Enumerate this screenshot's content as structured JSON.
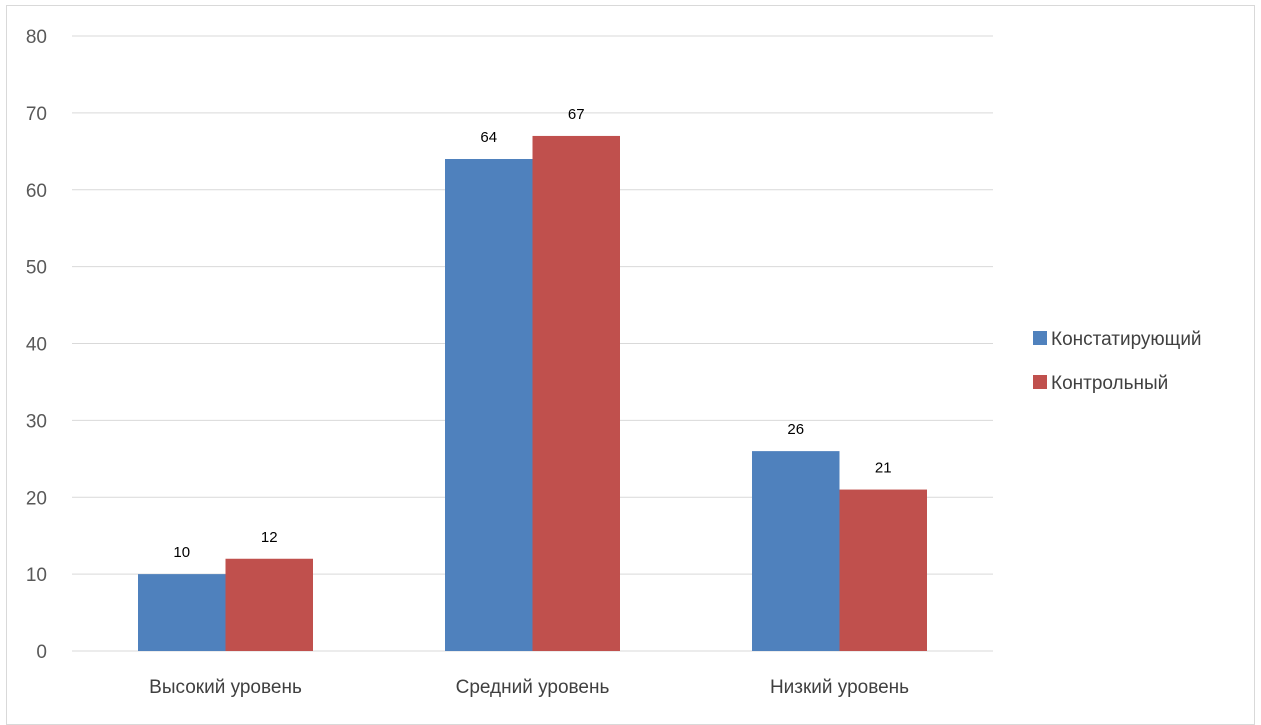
{
  "chart_data": {
    "type": "bar",
    "title": "",
    "xlabel": "",
    "ylabel": "",
    "categories": [
      "Высокий уровень",
      "Средний уровень",
      "Низкий уровень"
    ],
    "series": [
      {
        "name": "Констатирующий",
        "values": [
          10,
          64,
          26
        ],
        "color": "#4F81BD"
      },
      {
        "name": "Контрольный",
        "values": [
          12,
          67,
          21
        ],
        "color": "#C0504D"
      }
    ],
    "ylim": [
      0,
      80
    ],
    "yticks": [
      0,
      10,
      20,
      30,
      40,
      50,
      60,
      70,
      80
    ],
    "grid": true,
    "legend_position": "right",
    "data_labels": true
  }
}
